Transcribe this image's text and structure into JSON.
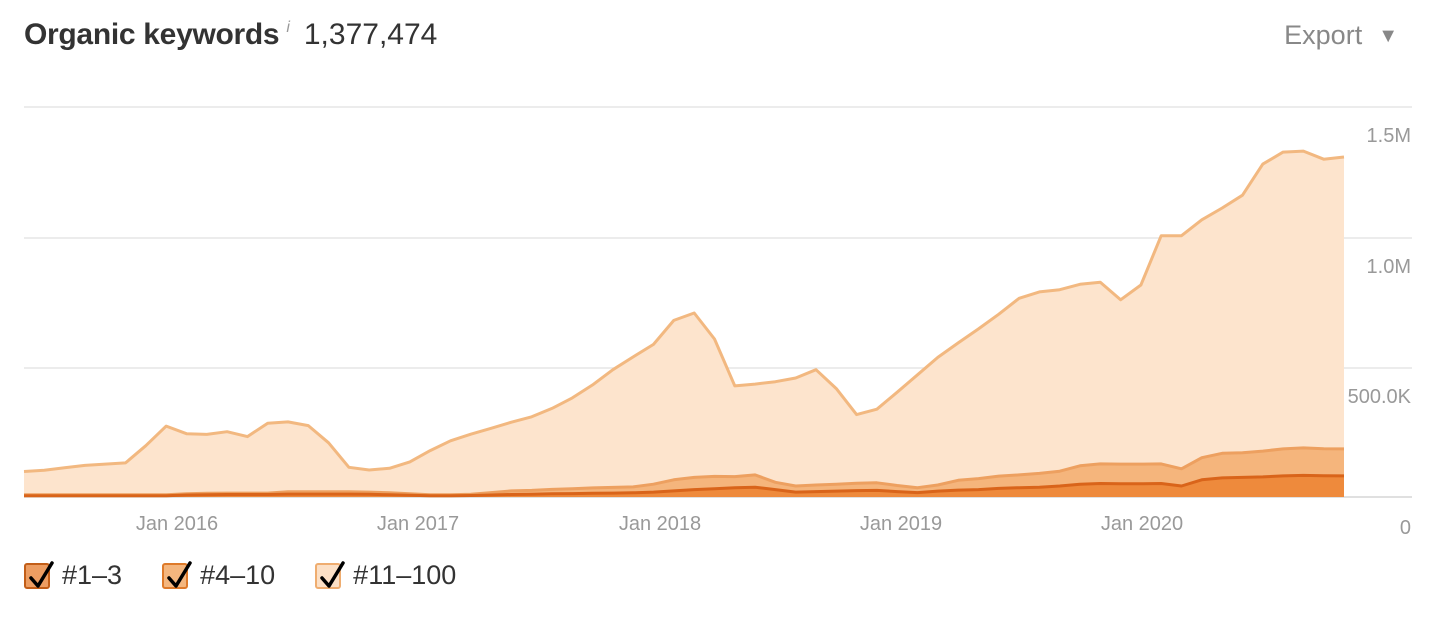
{
  "header": {
    "title": "Organic keywords",
    "info": "i",
    "total": "1,377,474",
    "export_label": "Export"
  },
  "chart_data": {
    "type": "area",
    "stacked": true,
    "x": [
      "2015-05",
      "2015-06",
      "2015-07",
      "2015-08",
      "2015-09",
      "2015-10",
      "2015-11",
      "2015-12",
      "2016-01",
      "2016-02",
      "2016-03",
      "2016-04",
      "2016-05",
      "2016-06",
      "2016-07",
      "2016-08",
      "2016-09",
      "2016-10",
      "2016-11",
      "2016-12",
      "2017-01",
      "2017-02",
      "2017-03",
      "2017-04",
      "2017-05",
      "2017-06",
      "2017-07",
      "2017-08",
      "2017-09",
      "2017-10",
      "2017-11",
      "2017-12",
      "2018-01",
      "2018-02",
      "2018-03",
      "2018-04",
      "2018-05",
      "2018-06",
      "2018-07",
      "2018-08",
      "2018-09",
      "2018-10",
      "2018-11",
      "2018-12",
      "2019-01",
      "2019-02",
      "2019-03",
      "2019-04",
      "2019-05",
      "2019-06",
      "2019-07",
      "2019-08",
      "2019-09",
      "2019-10",
      "2019-11",
      "2019-12",
      "2020-01",
      "2020-02",
      "2020-03",
      "2020-04",
      "2020-05",
      "2020-06",
      "2020-07",
      "2020-08",
      "2020-09",
      "2020-10"
    ],
    "x_ticks": [
      "Jan 2016",
      "Jan 2017",
      "Jan 2018",
      "Jan 2019",
      "Jan 2020"
    ],
    "y_ticks": [
      "0",
      "500.0K",
      "1.0M",
      "1.5M"
    ],
    "ylim": [
      0,
      1500000
    ],
    "grid": true,
    "legend_position": "bottom-left",
    "series": [
      {
        "name": "#1–3",
        "color": "#ee8a3c",
        "values": [
          5000,
          5000,
          5000,
          5000,
          5000,
          5000,
          5000,
          5000,
          8000,
          9000,
          10000,
          10000,
          10000,
          12000,
          12000,
          12000,
          12000,
          11000,
          9000,
          7000,
          5000,
          5000,
          6000,
          8000,
          10000,
          11000,
          13000,
          14000,
          15000,
          16000,
          17000,
          20000,
          25000,
          30000,
          34000,
          38000,
          40000,
          30000,
          20000,
          22000,
          24000,
          26000,
          27000,
          22000,
          18000,
          24000,
          28000,
          30000,
          35000,
          38000,
          40000,
          45000,
          52000,
          55000,
          54000,
          54000,
          55000,
          45000,
          70000,
          78000,
          80000,
          82000,
          86000,
          88000,
          87000,
          86000
        ]
      },
      {
        "name": "#4–10",
        "color": "#f4b982",
        "values": [
          4000,
          4000,
          4000,
          4000,
          4000,
          4000,
          4000,
          4000,
          5000,
          6000,
          6000,
          6000,
          6000,
          9000,
          9000,
          9000,
          9000,
          9000,
          8000,
          6000,
          4000,
          4000,
          5000,
          10000,
          15000,
          16000,
          18000,
          20000,
          22000,
          23000,
          24000,
          32000,
          45000,
          50000,
          50000,
          45000,
          50000,
          30000,
          25000,
          27000,
          28000,
          30000,
          31000,
          25000,
          20000,
          25000,
          40000,
          45000,
          50000,
          52000,
          56000,
          60000,
          75000,
          80000,
          80000,
          80000,
          80000,
          70000,
          90000,
          100000,
          100000,
          105000,
          110000,
          112000,
          110000,
          110000
        ]
      },
      {
        "name": "#11–100",
        "color": "#fce4cc",
        "values": [
          95000,
          100000,
          110000,
          120000,
          125000,
          130000,
          200000,
          280000,
          245000,
          240000,
          250000,
          230000,
          285000,
          285000,
          270000,
          200000,
          100000,
          90000,
          100000,
          130000,
          180000,
          220000,
          245000,
          262000,
          280000,
          300000,
          330000,
          370000,
          420000,
          480000,
          530000,
          570000,
          650000,
          670000,
          560000,
          370000,
          370000,
          410000,
          440000,
          470000,
          390000,
          280000,
          300000,
          380000,
          460000,
          520000,
          560000,
          610000,
          660000,
          720000,
          740000,
          740000,
          740000,
          740000,
          670000,
          730000,
          930000,
          950000,
          970000,
          1000000,
          1050000,
          1170000,
          1210000,
          1210000,
          1180000,
          1190000
        ]
      }
    ]
  },
  "legend": [
    {
      "label": "#1–3",
      "fill": "#ec9d62",
      "border": "#c25e18"
    },
    {
      "label": "#4–10",
      "fill": "#f4b67e",
      "border": "#de7a2a"
    },
    {
      "label": "#11–100",
      "fill": "#fce0c6",
      "border": "#efad70"
    }
  ]
}
